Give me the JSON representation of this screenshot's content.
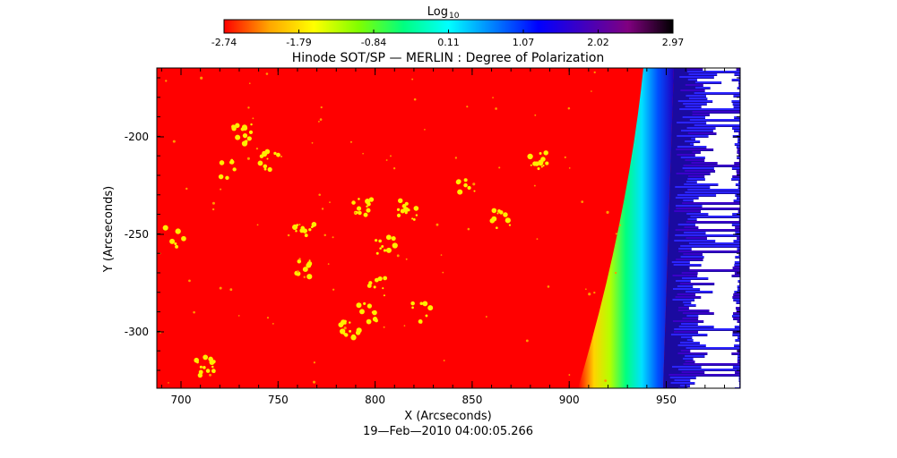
{
  "colorbar": {
    "label": "Log",
    "label_sub": "10",
    "ticks": [
      "-2.74",
      "-1.79",
      "-0.84",
      "0.11",
      "1.07",
      "2.02",
      "2.97"
    ],
    "colors": [
      "#ff0000",
      "#ffa500",
      "#ffff00",
      "#80ff00",
      "#00ff80",
      "#00ffff",
      "#0080ff",
      "#0000ff",
      "#4000c0",
      "#800080",
      "#000000"
    ]
  },
  "title": "Hinode SOT/SP — MERLIN : Degree of Polarization",
  "axes": {
    "xlabel": "X (Arcseconds)",
    "ylabel": "Y (Arcseconds)",
    "xticks": [
      "700",
      "750",
      "800",
      "850",
      "900",
      "950"
    ],
    "yticks": [
      "-200",
      "-250",
      "-300"
    ]
  },
  "timestamp": "19—Feb—2010 04:00:05.266",
  "image": {
    "background_color": "#ff0000",
    "feature_color": "#ffee00",
    "limb_colors": [
      "#ff0000",
      "#ffd400",
      "#b4ff00",
      "#00ff80",
      "#00e0ff",
      "#0050ff",
      "#2000c0"
    ],
    "offlimb_color": "#ffffff"
  }
}
